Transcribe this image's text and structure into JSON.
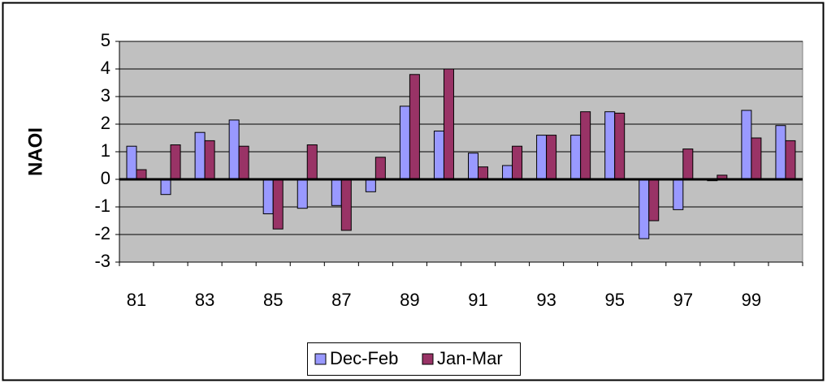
{
  "chart_data": {
    "type": "bar",
    "y_label": "NAOI",
    "categories": [
      "81",
      null,
      "83",
      null,
      "85",
      null,
      "87",
      null,
      "89",
      null,
      "91",
      null,
      "93",
      null,
      "95",
      null,
      "97",
      null,
      "99",
      null
    ],
    "series": [
      {
        "name": "Dec-Feb",
        "color": "#9999ff",
        "values": [
          1.2,
          -0.55,
          1.7,
          2.15,
          -1.25,
          -1.05,
          -0.95,
          -0.45,
          2.65,
          1.75,
          0.95,
          0.5,
          1.6,
          1.6,
          2.45,
          -2.15,
          -1.1,
          -0.05,
          2.5,
          1.95
        ]
      },
      {
        "name": "Jan-Mar",
        "color": "#993366",
        "values": [
          0.35,
          1.25,
          1.4,
          1.2,
          -1.8,
          1.25,
          -1.85,
          0.8,
          3.8,
          4.0,
          0.45,
          1.2,
          1.6,
          2.45,
          2.4,
          -1.5,
          1.1,
          0.15,
          1.5,
          1.4
        ]
      }
    ],
    "ylim": [
      -3,
      5
    ],
    "yticks": [
      -3,
      -2,
      -1,
      0,
      1,
      2,
      3,
      4,
      5
    ],
    "grid": true,
    "plot_background": "#c0c0c0",
    "legend": "bottom"
  }
}
